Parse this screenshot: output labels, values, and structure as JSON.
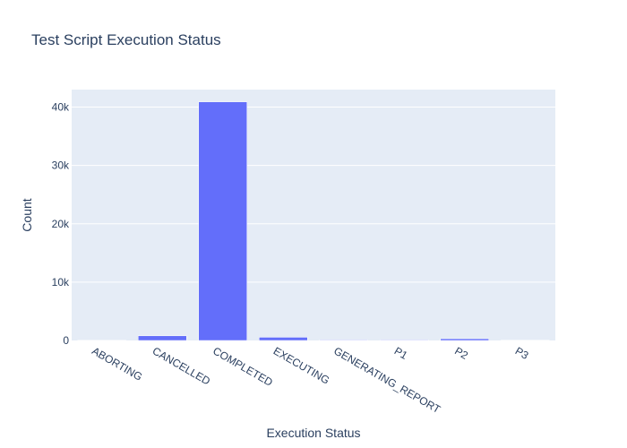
{
  "chart_data": {
    "type": "bar",
    "title": "Test Script Execution Status",
    "xlabel": "Execution Status",
    "ylabel": "Count",
    "categories": [
      "ABORTING",
      "CANCELLED",
      "COMPLETED",
      "EXECUTING",
      "GENERATING_REPORT",
      "P1",
      "P2",
      "P3"
    ],
    "values": [
      40,
      800,
      40900,
      550,
      100,
      100,
      300,
      50
    ],
    "ylim": [
      0,
      43000
    ],
    "yticks": [
      0,
      10000,
      20000,
      30000,
      40000
    ],
    "ytick_labels": [
      "0",
      "10k",
      "20k",
      "30k",
      "40k"
    ],
    "grid": true,
    "colors": {
      "bar": "#636efa",
      "plot_bg": "#e5ecf6",
      "grid": "#ffffff",
      "text": "#2a3f5f"
    }
  }
}
